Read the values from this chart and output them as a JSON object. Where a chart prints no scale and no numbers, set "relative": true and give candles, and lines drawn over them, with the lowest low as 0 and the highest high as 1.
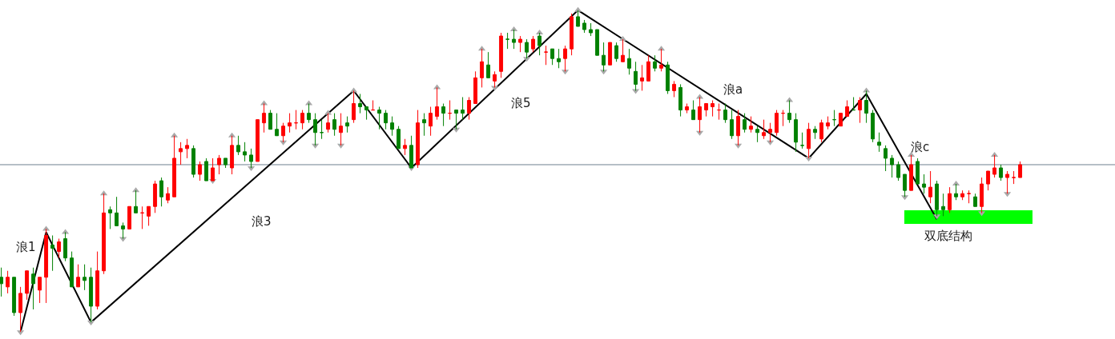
{
  "chart_data": {
    "type": "candlestick",
    "relative": true,
    "grid": false,
    "categories": [
      null,
      null,
      null,
      null,
      null,
      null,
      null,
      null,
      null,
      null,
      null,
      null,
      null,
      null,
      null,
      null,
      null,
      null,
      null,
      null,
      null,
      null,
      null,
      null,
      null,
      null,
      null,
      null,
      null,
      null,
      null,
      null,
      null,
      null,
      null,
      null,
      null,
      null,
      null,
      null,
      null,
      null,
      null,
      null,
      null,
      null,
      null,
      null,
      null,
      null,
      null,
      null,
      null,
      null,
      null,
      null,
      null,
      null,
      null,
      null,
      null,
      null,
      null,
      null,
      null,
      null,
      null,
      null,
      null,
      null,
      null,
      null,
      null,
      null,
      null,
      null,
      null,
      null,
      null,
      null,
      null,
      null,
      null,
      null,
      null,
      null,
      null,
      null,
      null,
      null,
      null,
      null,
      null,
      null,
      null,
      null,
      null,
      null,
      null,
      null,
      null,
      null,
      null,
      null,
      null,
      null,
      null,
      null,
      null,
      null,
      null,
      null,
      null,
      null,
      null,
      null,
      null,
      null,
      null,
      null,
      null,
      null,
      null,
      null,
      null,
      null,
      null,
      null,
      null,
      null,
      null,
      null,
      null,
      null,
      null,
      null,
      null,
      null,
      null,
      null,
      null,
      null,
      null,
      null,
      null,
      null,
      null,
      null,
      null,
      null,
      null,
      null,
      null,
      null,
      null,
      null,
      null,
      null,
      null,
      null
    ],
    "colors": [
      "#008000",
      "#ff0000",
      "#008000",
      "#ff0000",
      "#ff0000",
      "#008000",
      "#ff0000",
      "#ff0000",
      "#008000",
      "#ff0000",
      "#008000",
      "#008000",
      "#ff0000",
      "#008000",
      "#008000",
      "#ff0000",
      "#ff0000",
      "#008000",
      "#008000",
      "#008000",
      "#ff0000",
      "#008000",
      "#ff0000",
      "#ff0000",
      "#ff0000",
      "#008000",
      "#ff0000",
      "#ff0000",
      "#ff0000",
      "#ff0000",
      "#008000",
      "#ff0000",
      "#008000",
      "#ff0000",
      "#ff0000",
      "#008000",
      "#ff0000",
      "#008000",
      "#008000",
      "#008000",
      "#ff0000",
      "#ff0000",
      "#008000",
      "#008000",
      "#ff0000",
      "#ff0000",
      "#ff0000",
      "#ff0000",
      "#008000",
      "#008000",
      "#008000",
      "#ff0000",
      "#008000",
      "#ff0000",
      "#008000",
      "#ff0000",
      "#008000",
      "#008000",
      "#ff0000",
      "#008000",
      "#008000",
      "#008000",
      "#008000",
      "#ff0000",
      "#008000",
      "#ff0000",
      "#008000",
      "#ff0000",
      "#ff0000",
      "#008000",
      "#ff0000",
      "#008000",
      "#008000",
      "#ff0000",
      "#ff0000",
      "#ff0000",
      "#008000",
      "#ff0000",
      "#ff0000",
      "#008000",
      "#008000",
      "#ff0000",
      "#008000",
      "#ff0000",
      "#008000",
      "#ff0000",
      "#008000",
      "#008000",
      "#ff0000",
      "#ff0000",
      "#008000",
      "#008000",
      "#008000",
      "#008000",
      "#008000",
      "#ff0000",
      "#008000",
      "#ff0000",
      "#008000",
      "#008000",
      "#ff0000",
      "#ff0000",
      "#008000",
      "#ff0000",
      "#008000",
      "#ff0000",
      "#008000",
      "#ff0000",
      "#008000",
      "#ff0000",
      "#ff0000",
      "#ff0000",
      "#ff0000",
      "#008000",
      "#008000",
      "#ff0000",
      "#008000",
      "#ff0000",
      "#008000",
      "#ff0000",
      "#ff0000",
      "#ff0000",
      "#ff0000",
      "#008000",
      "#008000",
      "#008000",
      "#ff0000",
      "#008000",
      "#ff0000",
      "#ff0000",
      "#008000",
      "#ff0000",
      "#ff0000",
      "#008000",
      "#ff0000",
      "#008000",
      "#008000",
      "#008000",
      "#008000",
      "#008000",
      "#008000",
      "#008000",
      "#ff0000",
      "#008000",
      "#008000",
      "#ff0000",
      "#008000",
      "#008000",
      "#ff0000",
      "#008000",
      "#ff0000",
      "#ff0000",
      "#008000",
      "#ff0000",
      "#ff0000",
      "#ff0000",
      "#008000",
      "#ff0000",
      "#ff0000",
      "#ff0000"
    ],
    "ohlc": [
      [
        0.17,
        0.2,
        0.11,
        0.15
      ],
      [
        0.14,
        0.19,
        0.12,
        0.17
      ],
      [
        0.17,
        0.17,
        0.05,
        0.06
      ],
      [
        0.06,
        0.14,
        0,
        0.12
      ],
      [
        0.12,
        0.19,
        0.1,
        0.19
      ],
      [
        0.18,
        0.2,
        0.07,
        0.15
      ],
      [
        0.13,
        0.17,
        0.09,
        0.17
      ],
      [
        0.17,
        0.32,
        0.09,
        0.3
      ],
      [
        0.27,
        0.3,
        0.19,
        0.26
      ],
      [
        0.25,
        0.29,
        0.23,
        0.28
      ],
      [
        0.29,
        0.31,
        0.22,
        0.23
      ],
      [
        0.23,
        0.25,
        0.14,
        0.14
      ],
      [
        0.14,
        0.21,
        0.14,
        0.17
      ],
      [
        0.17,
        0.21,
        0.13,
        0.16
      ],
      [
        0.17,
        0.2,
        0.03,
        0.08
      ],
      [
        0.08,
        0.25,
        0.07,
        0.19
      ],
      [
        0.19,
        0.43,
        0.18,
        0.37
      ],
      [
        0.38,
        0.39,
        0.32,
        0.37
      ],
      [
        0.37,
        0.42,
        0.33,
        0.33
      ],
      [
        0.33,
        0.34,
        0.29,
        0.32
      ],
      [
        0.32,
        0.39,
        0.32,
        0.39
      ],
      [
        0.39,
        0.44,
        0.37,
        0.37
      ],
      [
        0.37,
        0.39,
        0.32,
        0.37
      ],
      [
        0.36,
        0.39,
        0.33,
        0.39
      ],
      [
        0.39,
        0.47,
        0.37,
        0.46
      ],
      [
        0.47,
        0.48,
        0.39,
        0.42
      ],
      [
        0.41,
        0.45,
        0.4,
        0.43
      ],
      [
        0.42,
        0.61,
        0.42,
        0.54
      ],
      [
        0.56,
        0.59,
        0.52,
        0.57
      ],
      [
        0.57,
        0.6,
        0.54,
        0.58
      ],
      [
        0.57,
        0.58,
        0.48,
        0.49
      ],
      [
        0.49,
        0.53,
        0.47,
        0.52
      ],
      [
        0.53,
        0.54,
        0.47,
        0.47
      ],
      [
        0.47,
        0.54,
        0.47,
        0.51
      ],
      [
        0.52,
        0.55,
        0.49,
        0.54
      ],
      [
        0.54,
        0.54,
        0.51,
        0.52
      ],
      [
        0.51,
        0.61,
        0.49,
        0.58
      ],
      [
        0.58,
        0.61,
        0.55,
        0.56
      ],
      [
        0.56,
        0.59,
        0.53,
        0.55
      ],
      [
        0.55,
        0.57,
        0.51,
        0.53
      ],
      [
        0.53,
        0.66,
        0.53,
        0.66
      ],
      [
        0.65,
        0.71,
        0.62,
        0.68
      ],
      [
        0.68,
        0.69,
        0.63,
        0.63
      ],
      [
        0.63,
        0.68,
        0.61,
        0.61
      ],
      [
        0.61,
        0.65,
        0.59,
        0.64
      ],
      [
        0.64,
        0.68,
        0.62,
        0.65
      ],
      [
        0.65,
        0.69,
        0.63,
        0.65
      ],
      [
        0.65,
        0.69,
        0.63,
        0.68
      ],
      [
        0.68,
        0.71,
        0.65,
        0.66
      ],
      [
        0.66,
        0.68,
        0.58,
        0.62
      ],
      [
        0.62,
        0.66,
        0.6,
        0.62
      ],
      [
        0.63,
        0.68,
        0.62,
        0.65
      ],
      [
        0.66,
        0.68,
        0.61,
        0.63
      ],
      [
        0.62,
        0.68,
        0.58,
        0.64
      ],
      [
        0.65,
        0.67,
        0.62,
        0.64
      ],
      [
        0.66,
        0.75,
        0.65,
        0.71
      ],
      [
        0.71,
        0.74,
        0.68,
        0.7
      ],
      [
        0.7,
        0.7,
        0.66,
        0.69
      ],
      [
        0.69,
        0.72,
        0.69,
        0.69
      ],
      [
        0.69,
        0.7,
        0.63,
        0.68
      ],
      [
        0.68,
        0.69,
        0.63,
        0.65
      ],
      [
        0.65,
        0.67,
        0.61,
        0.63
      ],
      [
        0.63,
        0.64,
        0.57,
        0.57
      ],
      [
        0.57,
        0.6,
        0.55,
        0.58
      ],
      [
        0.58,
        0.61,
        0.51,
        0.51
      ],
      [
        0.52,
        0.69,
        0.51,
        0.65
      ],
      [
        0.66,
        0.68,
        0.61,
        0.65
      ],
      [
        0.64,
        0.7,
        0.61,
        0.68
      ],
      [
        0.67,
        0.76,
        0.66,
        0.7
      ],
      [
        0.7,
        0.71,
        0.64,
        0.68
      ],
      [
        0.68,
        0.72,
        0.66,
        0.68
      ],
      [
        0.69,
        0.69,
        0.63,
        0.68
      ],
      [
        0.69,
        0.73,
        0.66,
        0.68
      ],
      [
        0.68,
        0.73,
        0.66,
        0.72
      ],
      [
        0.71,
        0.81,
        0.71,
        0.79
      ],
      [
        0.79,
        0.88,
        0.76,
        0.84
      ],
      [
        0.83,
        0.87,
        0.79,
        0.79
      ],
      [
        0.78,
        0.81,
        0.76,
        0.8
      ],
      [
        0.81,
        0.93,
        0.79,
        0.92
      ],
      [
        0.91,
        0.93,
        0.88,
        0.91
      ],
      [
        0.91,
        0.94,
        0.88,
        0.9
      ],
      [
        0.9,
        0.92,
        0.87,
        0.91
      ],
      [
        0.9,
        0.91,
        0.85,
        0.87
      ],
      [
        0.88,
        0.92,
        0.87,
        0.91
      ],
      [
        0.92,
        0.93,
        0.86,
        0.89
      ],
      [
        0.87,
        0.89,
        0.83,
        0.87
      ],
      [
        0.88,
        0.88,
        0.83,
        0.85
      ],
      [
        0.85,
        0.88,
        0.82,
        0.84
      ],
      [
        0.85,
        0.89,
        0.81,
        0.88
      ],
      [
        0.88,
        0.99,
        0.86,
        0.98
      ],
      [
        0.98,
        1,
        0.95,
        0.95
      ],
      [
        0.96,
        0.97,
        0.93,
        0.94
      ],
      [
        0.94,
        0.96,
        0.92,
        0.93
      ],
      [
        0.94,
        0.94,
        0.86,
        0.86
      ],
      [
        0.86,
        0.9,
        0.81,
        0.83
      ],
      [
        0.83,
        0.9,
        0.83,
        0.9
      ],
      [
        0.89,
        0.9,
        0.84,
        0.85
      ],
      [
        0.84,
        0.91,
        0.84,
        0.86
      ],
      [
        0.85,
        0.88,
        0.8,
        0.82
      ],
      [
        0.81,
        0.84,
        0.75,
        0.77
      ],
      [
        0.78,
        0.83,
        0.75,
        0.79
      ],
      [
        0.78,
        0.86,
        0.78,
        0.84
      ],
      [
        0.84,
        0.86,
        0.81,
        0.82
      ],
      [
        0.82,
        0.88,
        0.81,
        0.83
      ],
      [
        0.83,
        0.84,
        0.74,
        0.75
      ],
      [
        0.75,
        0.78,
        0.73,
        0.77
      ],
      [
        0.76,
        0.77,
        0.67,
        0.69
      ],
      [
        0.69,
        0.71,
        0.68,
        0.7
      ],
      [
        0.69,
        0.72,
        0.66,
        0.66
      ],
      [
        0.66,
        0.73,
        0.62,
        0.7
      ],
      [
        0.69,
        0.71,
        0.67,
        0.71
      ],
      [
        0.7,
        0.72,
        0.67,
        0.71
      ],
      [
        0.69,
        0.71,
        0.66,
        0.69
      ],
      [
        0.69,
        0.71,
        0.65,
        0.66
      ],
      [
        0.66,
        0.69,
        0.6,
        0.61
      ],
      [
        0.61,
        0.69,
        0.58,
        0.67
      ],
      [
        0.66,
        0.68,
        0.62,
        0.63
      ],
      [
        0.63,
        0.67,
        0.62,
        0.64
      ],
      [
        0.63,
        0.64,
        0.59,
        0.62
      ],
      [
        0.61,
        0.66,
        0.6,
        0.62
      ],
      [
        0.62,
        0.65,
        0.59,
        0.63
      ],
      [
        0.62,
        0.69,
        0.61,
        0.68
      ],
      [
        0.68,
        0.69,
        0.64,
        0.68
      ],
      [
        0.68,
        0.72,
        0.65,
        0.66
      ],
      [
        0.66,
        0.68,
        0.56,
        0.59
      ],
      [
        0.58,
        0.62,
        0.57,
        0.58
      ],
      [
        0.57,
        0.65,
        0.54,
        0.63
      ],
      [
        0.63,
        0.64,
        0.6,
        0.62
      ],
      [
        0.6,
        0.66,
        0.59,
        0.65
      ],
      [
        0.64,
        0.67,
        0.63,
        0.65
      ],
      [
        0.66,
        0.69,
        0.64,
        0.66
      ],
      [
        0.64,
        0.68,
        0.64,
        0.68
      ],
      [
        0.67,
        0.72,
        0.67,
        0.7
      ],
      [
        0.69,
        0.73,
        0.69,
        0.69
      ],
      [
        0.69,
        0.73,
        0.65,
        0.72
      ],
      [
        0.72,
        0.75,
        0.65,
        0.68
      ],
      [
        0.68,
        0.69,
        0.59,
        0.6
      ],
      [
        0.59,
        0.62,
        0.56,
        0.58
      ],
      [
        0.57,
        0.58,
        0.5,
        0.54
      ],
      [
        0.54,
        0.55,
        0.48,
        0.52
      ],
      [
        0.52,
        0.53,
        0.47,
        0.48
      ],
      [
        0.49,
        0.49,
        0.42,
        0.44
      ],
      [
        0.44,
        0.55,
        0.44,
        0.52
      ],
      [
        0.53,
        0.54,
        0.46,
        0.46
      ],
      [
        0.46,
        0.49,
        0.43,
        0.45
      ],
      [
        0.42,
        0.5,
        0.4,
        0.45
      ],
      [
        0.46,
        0.47,
        0.36,
        0.38
      ],
      [
        0.39,
        0.43,
        0.36,
        0.38
      ],
      [
        0.38,
        0.45,
        0.37,
        0.43
      ],
      [
        0.43,
        0.46,
        0.41,
        0.42
      ],
      [
        0.42,
        0.44,
        0.41,
        0.43
      ],
      [
        0.43,
        0.44,
        0.4,
        0.43
      ],
      [
        0.42,
        0.43,
        0.39,
        0.39
      ],
      [
        0.39,
        0.48,
        0.37,
        0.46
      ],
      [
        0.46,
        0.5,
        0.44,
        0.5
      ],
      [
        0.49,
        0.55,
        0.48,
        0.51
      ],
      [
        0.51,
        0.52,
        0.47,
        0.48
      ],
      [
        0.48,
        0.5,
        0.43,
        0.49
      ],
      [
        0.48,
        0.5,
        0.46,
        0.48
      ],
      [
        0.48,
        0.53,
        0.48,
        0.52
      ]
    ],
    "series": [
      {
        "type": "line",
        "color": "#000000",
        "values": [
          null,
          null,
          null,
          0,
          null,
          null,
          null,
          0.31,
          null,
          null,
          null,
          null,
          null,
          null,
          0.03,
          null,
          null,
          null,
          null,
          null,
          null,
          null,
          null,
          null,
          null,
          null,
          null,
          null,
          null,
          null,
          null,
          null,
          null,
          null,
          null,
          null,
          null,
          null,
          null,
          null,
          null,
          null,
          null,
          null,
          null,
          null,
          null,
          null,
          null,
          null,
          null,
          null,
          null,
          null,
          null,
          0.75,
          null,
          null,
          null,
          null,
          null,
          null,
          null,
          null,
          0.51,
          null,
          null,
          null,
          null,
          null,
          null,
          null,
          null,
          null,
          null,
          null,
          null,
          null,
          null,
          null,
          null,
          null,
          null,
          null,
          null,
          null,
          null,
          null,
          null,
          null,
          1,
          null,
          null,
          null,
          null,
          null,
          null,
          null,
          null,
          null,
          null,
          null,
          null,
          null,
          null,
          null,
          null,
          null,
          null,
          null,
          null,
          null,
          null,
          null,
          null,
          null,
          null,
          null,
          null,
          null,
          null,
          null,
          null,
          null,
          null,
          null,
          0.54,
          null,
          null,
          null,
          null,
          null,
          null,
          null,
          null,
          0.74,
          null,
          null,
          null,
          null,
          null,
          null,
          null,
          null,
          null,
          null,
          0.35,
          null,
          null,
          null,
          null,
          null,
          null,
          null,
          null,
          null,
          null,
          null,
          null,
          null
        ]
      },
      {
        "type": "scatter",
        "marker": "triangle",
        "color": "#a9a9a9",
        "values": [
          null,
          null,
          null,
          null,
          null,
          null,
          null,
          0.32,
          null,
          null,
          0.31,
          null,
          null,
          null,
          null,
          null,
          0.43,
          null,
          null,
          null,
          null,
          0.44,
          null,
          null,
          null,
          null,
          null,
          0.61,
          null,
          null,
          null,
          null,
          null,
          null,
          null,
          null,
          0.61,
          null,
          null,
          null,
          null,
          0.71,
          null,
          null,
          null,
          null,
          null,
          null,
          0.71,
          null,
          null,
          0.68,
          null,
          null,
          null,
          0.75,
          null,
          null,
          null,
          null,
          null,
          null,
          null,
          null,
          null,
          null,
          null,
          null,
          0.76,
          null,
          null,
          null,
          null,
          null,
          null,
          0.88,
          null,
          null,
          null,
          null,
          0.94,
          null,
          null,
          null,
          0.93,
          null,
          null,
          null,
          null,
          null,
          1,
          null,
          null,
          null,
          null,
          null,
          null,
          0.91,
          null,
          null,
          null,
          null,
          null,
          0.88,
          null,
          null,
          null,
          null,
          null,
          0.73,
          null,
          null,
          null,
          null,
          null,
          null,
          null,
          null,
          null,
          null,
          null,
          null,
          null,
          0.72,
          null,
          null,
          null,
          null,
          null,
          null,
          null,
          null,
          null,
          null,
          null,
          0.75,
          null,
          null,
          null,
          null,
          null,
          null,
          0.55,
          null,
          null,
          null,
          null,
          null,
          null,
          0.46,
          null,
          null,
          null,
          null,
          null,
          0.55,
          null,
          null,
          null,
          null
        ]
      },
      {
        "type": "scatter",
        "marker": "triangle",
        "color": "#a9a9a9",
        "values": [
          null,
          null,
          null,
          0,
          null,
          null,
          null,
          null,
          null,
          null,
          null,
          null,
          null,
          null,
          0.03,
          null,
          null,
          null,
          null,
          0.29,
          null,
          null,
          null,
          null,
          null,
          null,
          null,
          null,
          null,
          null,
          null,
          null,
          null,
          0.47,
          null,
          null,
          null,
          null,
          null,
          0.51,
          null,
          null,
          null,
          null,
          0.59,
          null,
          null,
          null,
          null,
          0.58,
          null,
          null,
          null,
          0.58,
          null,
          null,
          null,
          null,
          null,
          null,
          null,
          null,
          null,
          null,
          0.51,
          null,
          null,
          null,
          null,
          null,
          null,
          0.63,
          null,
          null,
          null,
          null,
          null,
          0.76,
          null,
          null,
          null,
          null,
          0.85,
          null,
          null,
          null,
          null,
          null,
          0.81,
          null,
          null,
          null,
          null,
          null,
          0.81,
          null,
          null,
          null,
          null,
          0.75,
          null,
          null,
          null,
          null,
          null,
          null,
          null,
          null,
          null,
          0.62,
          null,
          null,
          null,
          null,
          null,
          0.58,
          null,
          null,
          null,
          null,
          0.59,
          null,
          null,
          null,
          null,
          null,
          0.54,
          null,
          null,
          null,
          null,
          null,
          null,
          null,
          null,
          null,
          null,
          null,
          null,
          null,
          null,
          0.42,
          null,
          null,
          null,
          null,
          0.36,
          null,
          null,
          null,
          null,
          null,
          null,
          0.37,
          null,
          null,
          null,
          0.43,
          null,
          null
        ]
      }
    ],
    "ref_lines": [
      {
        "axis": "y",
        "value": 0.52,
        "color": "#708090"
      }
    ],
    "annotations": [
      "浪1",
      "浪3",
      "浪5",
      "浪a",
      "浪c",
      "双底结构"
    ]
  }
}
